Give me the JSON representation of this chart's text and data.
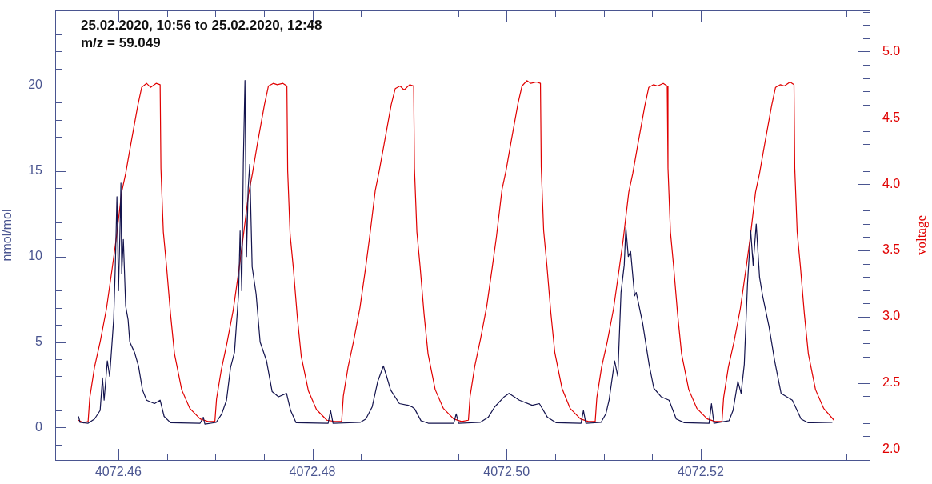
{
  "chart_data": {
    "type": "line",
    "annotations": [
      "25.02.2020, 10:56 to 25.02.2020, 12:48",
      "m/z = 59.049"
    ],
    "ylabel": "nmol/mol",
    "y2label": "voltage",
    "marker": "none",
    "line_style": "solid",
    "xlim": [
      4072.4535,
      4072.5374
    ],
    "ylim": [
      -1.9,
      24.4
    ],
    "y2lim": [
      1.92,
      5.31
    ],
    "xticks": [
      {
        "value": 4072.455,
        "label": null
      },
      4072.46,
      {
        "value": 4072.465,
        "label": null
      },
      {
        "value": 4072.47,
        "label": null
      },
      {
        "value": 4072.475,
        "label": null
      },
      4072.48,
      {
        "value": 4072.485,
        "label": null
      },
      {
        "value": 4072.49,
        "label": null
      },
      {
        "value": 4072.495,
        "label": null
      },
      {
        "value": 4072.5,
        "label": "4072.50"
      },
      {
        "value": 4072.505,
        "label": null
      },
      {
        "value": 4072.51,
        "label": null
      },
      {
        "value": 4072.515,
        "label": null
      },
      4072.52,
      {
        "value": 4072.525,
        "label": null
      },
      {
        "value": 4072.53,
        "label": null
      },
      {
        "value": 4072.535,
        "label": null
      }
    ],
    "yticks": [
      {
        "value": -1,
        "label": null
      },
      0,
      {
        "value": 1,
        "label": null
      },
      {
        "value": 2,
        "label": null
      },
      {
        "value": 3,
        "label": null
      },
      {
        "value": 4,
        "label": null
      },
      5,
      {
        "value": 6,
        "label": null
      },
      {
        "value": 7,
        "label": null
      },
      {
        "value": 8,
        "label": null
      },
      {
        "value": 9,
        "label": null
      },
      10,
      {
        "value": 11,
        "label": null
      },
      {
        "value": 12,
        "label": null
      },
      {
        "value": 13,
        "label": null
      },
      {
        "value": 14,
        "label": null
      },
      15,
      {
        "value": 16,
        "label": null
      },
      {
        "value": 17,
        "label": null
      },
      {
        "value": 18,
        "label": null
      },
      {
        "value": 19,
        "label": null
      },
      20,
      {
        "value": 21,
        "label": null
      },
      {
        "value": 22,
        "label": null
      },
      {
        "value": 23,
        "label": null
      },
      {
        "value": 24,
        "label": null
      }
    ],
    "y2ticks": [
      {
        "value": 2,
        "label": "2.0"
      },
      {
        "value": 2.1,
        "label": null
      },
      {
        "value": 2.2,
        "label": null
      },
      {
        "value": 2.3,
        "label": null
      },
      {
        "value": 2.4,
        "label": null
      },
      2.5,
      {
        "value": 2.6,
        "label": null
      },
      {
        "value": 2.7,
        "label": null
      },
      {
        "value": 2.8,
        "label": null
      },
      {
        "value": 2.9,
        "label": null
      },
      {
        "value": 3,
        "label": "3.0"
      },
      {
        "value": 3.1,
        "label": null
      },
      {
        "value": 3.2,
        "label": null
      },
      {
        "value": 3.3,
        "label": null
      },
      {
        "value": 3.4,
        "label": null
      },
      3.5,
      {
        "value": 3.6,
        "label": null
      },
      {
        "value": 3.7,
        "label": null
      },
      {
        "value": 3.8,
        "label": null
      },
      {
        "value": 3.9,
        "label": null
      },
      {
        "value": 4,
        "label": "4.0"
      },
      {
        "value": 4.1,
        "label": null
      },
      {
        "value": 4.2,
        "label": null
      },
      {
        "value": 4.3,
        "label": null
      },
      {
        "value": 4.4,
        "label": null
      },
      4.5,
      {
        "value": 4.6,
        "label": null
      },
      {
        "value": 4.7,
        "label": null
      },
      {
        "value": 4.8,
        "label": null
      },
      {
        "value": 4.9,
        "label": null
      },
      {
        "value": 5,
        "label": "5.0"
      },
      {
        "value": 5.1,
        "label": null
      },
      {
        "value": 5.2,
        "label": null
      },
      {
        "value": 5.3,
        "label": null
      }
    ],
    "series": [
      {
        "color": "#e00000",
        "axis": "y2",
        "x": [
          4072.4559,
          4072.4564,
          4072.45689,
          4072.45706,
          4072.45755,
          4072.45813,
          4072.45878,
          4072.45936,
          4072.45977,
          4072.46035,
          4072.46076,
          4072.46126,
          4072.462,
          4072.46241,
          4072.46291,
          4072.46332,
          4072.4639,
          4072.46431,
          4072.46439,
          4072.46464,
          4072.46497,
          4072.46538,
          4072.46579,
          4072.46653,
          4072.46736,
          4072.46843,
          4072.46925,
          4072.46995,
          4072.47012,
          4072.47061,
          4072.47119,
          4072.47184,
          4072.47242,
          4072.47283,
          4072.47341,
          4072.47382,
          4072.47432,
          4072.47506,
          4072.47547,
          4072.47597,
          4072.47638,
          4072.47696,
          4072.47737,
          4072.47745,
          4072.4777,
          4072.47803,
          4072.47844,
          4072.47885,
          4072.47959,
          4072.48042,
          4072.48149,
          4072.48231,
          4072.48301,
          4072.48318,
          4072.48367,
          4072.48425,
          4072.4849,
          4072.48548,
          4072.48589,
          4072.48647,
          4072.48688,
          4072.48738,
          4072.48812,
          4072.48853,
          4072.48903,
          4072.48944,
          4072.49002,
          4072.49043,
          4072.49051,
          4072.49076,
          4072.49109,
          4072.4915,
          4072.49191,
          4072.49265,
          4072.49348,
          4072.49455,
          4072.49537,
          4072.49607,
          4072.49624,
          4072.49673,
          4072.49731,
          4072.49796,
          4072.49854,
          4072.49895,
          4072.49953,
          4072.49994,
          4072.50044,
          4072.50118,
          4072.50159,
          4072.50209,
          4072.5025,
          4072.50308,
          4072.50349,
          4072.50357,
          4072.50382,
          4072.50415,
          4072.50456,
          4072.50497,
          4072.50571,
          4072.50654,
          4072.50761,
          4072.50843,
          4072.50913,
          4072.5093,
          4072.50979,
          4072.51037,
          4072.51102,
          4072.5116,
          4072.51201,
          4072.51259,
          4072.513,
          4072.5135,
          4072.51424,
          4072.51465,
          4072.51515,
          4072.51556,
          4072.51614,
          4072.51655,
          4072.51663,
          4072.51688,
          4072.51721,
          4072.51762,
          4072.51803,
          4072.51877,
          4072.5196,
          4072.52067,
          4072.52149,
          4072.52219,
          4072.52236,
          4072.52285,
          4072.52343,
          4072.52408,
          4072.52466,
          4072.52507,
          4072.52565,
          4072.52606,
          4072.52656,
          4072.5273,
          4072.52771,
          4072.52821,
          4072.52862,
          4072.5292,
          4072.52961,
          4072.52969,
          4072.52994,
          4072.53027,
          4072.53068,
          4072.53109,
          4072.53183,
          4072.53266,
          4072.53373
        ],
        "values": [
          2.22,
          2.2,
          2.21,
          2.39,
          2.62,
          2.81,
          3.06,
          3.36,
          3.58,
          3.94,
          4.08,
          4.29,
          4.59,
          4.73,
          4.76,
          4.73,
          4.76,
          4.75,
          4.12,
          3.64,
          3.38,
          3.02,
          2.72,
          2.45,
          2.31,
          2.23,
          2.21,
          2.21,
          2.38,
          2.6,
          2.8,
          3.05,
          3.35,
          3.58,
          3.92,
          4.08,
          4.3,
          4.6,
          4.74,
          4.76,
          4.75,
          4.76,
          4.74,
          4.1,
          3.62,
          3.37,
          3.0,
          2.7,
          2.44,
          2.3,
          2.22,
          2.21,
          2.21,
          2.4,
          2.62,
          2.82,
          3.07,
          3.37,
          3.6,
          3.95,
          4.1,
          4.3,
          4.6,
          4.72,
          4.74,
          4.71,
          4.75,
          4.74,
          4.12,
          3.64,
          3.38,
          3.02,
          2.72,
          2.45,
          2.31,
          2.23,
          2.21,
          2.22,
          2.4,
          2.63,
          2.83,
          3.08,
          3.38,
          3.6,
          3.96,
          4.1,
          4.31,
          4.61,
          4.74,
          4.78,
          4.76,
          4.77,
          4.76,
          4.13,
          3.65,
          3.39,
          3.03,
          2.73,
          2.46,
          2.31,
          2.23,
          2.21,
          2.21,
          2.39,
          2.62,
          2.81,
          3.06,
          3.36,
          3.58,
          3.94,
          4.08,
          4.29,
          4.59,
          4.73,
          4.75,
          4.74,
          4.76,
          4.74,
          4.12,
          3.64,
          3.38,
          3.02,
          2.72,
          2.45,
          2.31,
          2.23,
          2.21,
          2.21,
          2.39,
          2.62,
          2.81,
          3.06,
          3.36,
          3.58,
          3.94,
          4.08,
          4.29,
          4.59,
          4.73,
          4.75,
          4.74,
          4.77,
          4.75,
          4.12,
          3.64,
          3.38,
          3.02,
          2.72,
          2.45,
          2.31,
          2.22
        ]
      },
      {
        "color": "#14144e",
        "x": [
          4072.4559,
          4072.45606,
          4072.45689,
          4072.45755,
          4072.45813,
          4072.45837,
          4072.45854,
          4072.45887,
          4072.45911,
          4072.45936,
          4072.45953,
          4072.45969,
          4072.45986,
          4072.46002,
          4072.46019,
          4072.46027,
          4072.46035,
          4072.46052,
          4072.46076,
          4072.46101,
          4072.46118,
          4072.46167,
          4072.46208,
          4072.46249,
          4072.46291,
          4072.46373,
          4072.46431,
          4072.46472,
          4072.46538,
          4072.46843,
          4072.46876,
          4072.46892,
          4072.47008,
          4072.47066,
          4072.47115,
          4072.47156,
          4072.47197,
          4072.47239,
          4072.47255,
          4072.47272,
          4072.47288,
          4072.47305,
          4072.47321,
          4072.47338,
          4072.47354,
          4072.47379,
          4072.4742,
          4072.47461,
          4072.47527,
          4072.47585,
          4072.47651,
          4072.47733,
          4072.47775,
          4072.47832,
          4072.48162,
          4072.48187,
          4072.48212,
          4072.48492,
          4072.4855,
          4072.48615,
          4072.48673,
          4072.48731,
          4072.48764,
          4072.48805,
          4072.48896,
          4072.48986,
          4072.49028,
          4072.49052,
          4072.49118,
          4072.49193,
          4072.49456,
          4072.49481,
          4072.49506,
          4072.49728,
          4072.49811,
          4072.49877,
          4072.49976,
          4072.50025,
          4072.50132,
          4072.50264,
          4072.50338,
          4072.50421,
          4072.50512,
          4072.50767,
          4072.50792,
          4072.50817,
          4072.50973,
          4072.51023,
          4072.51056,
          4072.51113,
          4072.51146,
          4072.51179,
          4072.51212,
          4072.51229,
          4072.51254,
          4072.51278,
          4072.51319,
          4072.51336,
          4072.51402,
          4072.51468,
          4072.51517,
          4072.51592,
          4072.51674,
          4072.51748,
          4072.51831,
          4072.52086,
          4072.52111,
          4072.52136,
          4072.52292,
          4072.52333,
          4072.52383,
          4072.52416,
          4072.52449,
          4072.52482,
          4072.52515,
          4072.5254,
          4072.52572,
          4072.52606,
          4072.52638,
          4072.52704,
          4072.52762,
          4072.52828,
          4072.52886,
          4072.52944,
          4072.53034,
          4072.53108,
          4072.53356
        ],
        "values": [
          0.65,
          0.3,
          0.25,
          0.5,
          1.0,
          2.9,
          1.6,
          3.9,
          3.0,
          5.0,
          6.4,
          9.4,
          13.5,
          8.0,
          12.0,
          14.3,
          9.0,
          11.0,
          7.1,
          6.3,
          5.0,
          4.4,
          3.6,
          2.2,
          1.6,
          1.4,
          1.6,
          0.65,
          0.28,
          0.25,
          0.6,
          0.2,
          0.3,
          0.8,
          1.6,
          3.5,
          4.4,
          7.8,
          11.5,
          8.0,
          15.5,
          20.3,
          10.0,
          14.0,
          15.4,
          9.4,
          7.8,
          5.0,
          3.9,
          2.1,
          1.8,
          2.0,
          1.0,
          0.28,
          0.25,
          1.0,
          0.25,
          0.3,
          0.5,
          1.2,
          2.7,
          3.6,
          3.0,
          2.2,
          1.4,
          1.3,
          1.2,
          1.1,
          0.4,
          0.25,
          0.25,
          0.8,
          0.25,
          0.3,
          0.6,
          1.2,
          1.8,
          2.0,
          1.6,
          1.3,
          1.4,
          0.6,
          0.28,
          0.25,
          1.0,
          0.25,
          0.3,
          0.8,
          1.6,
          3.9,
          3.0,
          7.9,
          9.5,
          11.7,
          10.0,
          10.3,
          7.7,
          7.9,
          6.1,
          3.7,
          2.3,
          1.8,
          1.6,
          0.5,
          0.28,
          0.25,
          1.4,
          0.25,
          0.4,
          1.0,
          2.7,
          2.0,
          3.7,
          8.4,
          11.5,
          9.5,
          11.9,
          8.8,
          7.7,
          5.9,
          3.9,
          2.0,
          1.8,
          1.6,
          0.5,
          0.28,
          0.3
        ]
      }
    ]
  }
}
